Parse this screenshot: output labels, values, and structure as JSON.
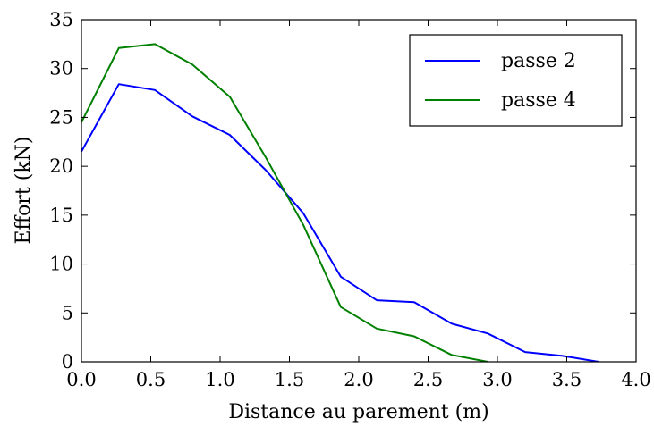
{
  "chart_data": {
    "type": "line",
    "title": "",
    "xlabel": "Distance au parement (m)",
    "ylabel": "Effort (kN)",
    "xlim": [
      0.0,
      4.0
    ],
    "ylim": [
      0,
      35
    ],
    "xticks": [
      "0.0",
      "0.5",
      "1.0",
      "1.5",
      "2.0",
      "2.5",
      "3.0",
      "3.5",
      "4.0"
    ],
    "yticks": [
      "0",
      "5",
      "10",
      "15",
      "20",
      "25",
      "30",
      "35"
    ],
    "grid": false,
    "legend_position": "top-right",
    "series": [
      {
        "name": "passe 2",
        "color": "#0000ff",
        "x": [
          0.0,
          0.27,
          0.53,
          0.8,
          1.07,
          1.33,
          1.6,
          1.87,
          2.13,
          2.4,
          2.67,
          2.93,
          3.2,
          3.47,
          3.73
        ],
        "y": [
          21.5,
          28.4,
          27.8,
          25.1,
          23.2,
          19.6,
          15.2,
          8.7,
          6.3,
          6.1,
          3.9,
          2.9,
          1.0,
          0.6,
          0.0
        ]
      },
      {
        "name": "passe 4",
        "color": "#008000",
        "x": [
          0.0,
          0.27,
          0.53,
          0.8,
          1.07,
          1.33,
          1.6,
          1.87,
          2.13,
          2.4,
          2.67,
          2.93
        ],
        "y": [
          24.5,
          32.1,
          32.5,
          30.4,
          27.1,
          20.9,
          14.0,
          5.6,
          3.4,
          2.6,
          0.7,
          0.0
        ]
      }
    ]
  }
}
